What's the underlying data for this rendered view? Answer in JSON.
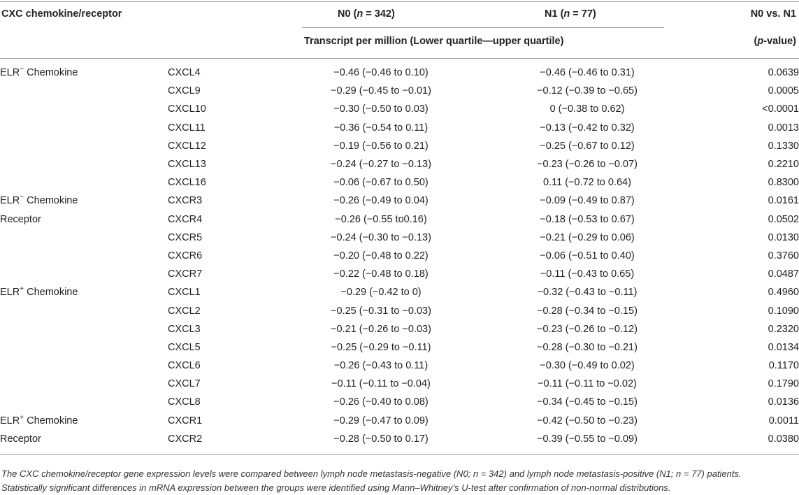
{
  "header": {
    "col1": "CXC chemokine/receptor",
    "n0_label": "N0 (",
    "n0_n": "n",
    "n0_val": " = 342)",
    "n1_label": "N1 (",
    "n1_n": "n",
    "n1_val": " = 77)",
    "pcol": "N0 vs. N1",
    "subheader": "Transcript per million (Lower quartile—upper quartile)",
    "pvalue_open": "(",
    "pvalue_p": "p",
    "pvalue_rest": "-value)"
  },
  "rows": [
    {
      "group_base": "ELR",
      "group_sup": "−",
      "group_rest": " Chemokine",
      "code": "CXCL4",
      "n0": "−0.46 (−0.46 to 0.10)",
      "n1": "−0.46 (−0.46 to 0.31)",
      "p": "0.0639"
    },
    {
      "group_base": "",
      "group_sup": "",
      "group_rest": "",
      "code": "CXCL9",
      "n0": "−0.29 (−0.45 to −0.01)",
      "n1": "−0.12 (−0.39 to −0.65)",
      "p": "0.0005"
    },
    {
      "group_base": "",
      "group_sup": "",
      "group_rest": "",
      "code": "CXCL10",
      "n0": "−0.30 (−0.50 to 0.03)",
      "n1": "0 (−0.38 to 0.62)",
      "p": "<0.0001"
    },
    {
      "group_base": "",
      "group_sup": "",
      "group_rest": "",
      "code": "CXCL11",
      "n0": "−0.36 (−0.54 to 0.11)",
      "n1": "−0.13 (−0.42 to 0.32)",
      "p": "0.0013"
    },
    {
      "group_base": "",
      "group_sup": "",
      "group_rest": "",
      "code": "CXCL12",
      "n0": "−0.19 (−0.56 to 0.21)",
      "n1": "−0.25 (−0.67 to 0.12)",
      "p": "0.1330"
    },
    {
      "group_base": "",
      "group_sup": "",
      "group_rest": "",
      "code": "CXCL13",
      "n0": "−0.24 (−0.27 to −0.13)",
      "n1": "−0.23 (−0.26 to −0.07)",
      "p": "0.2210"
    },
    {
      "group_base": "",
      "group_sup": "",
      "group_rest": "",
      "code": "CXCL16",
      "n0": "−0.06 (−0.67 to 0.50)",
      "n1": "0.11 (−0.72 to 0.64)",
      "p": "0.8300"
    },
    {
      "group_base": "ELR",
      "group_sup": "−",
      "group_rest": " Chemokine",
      "code": "CXCR3",
      "n0": "−0.26 (−0.49 to 0.04)",
      "n1": "−0.09 (−0.49 to 0.87)",
      "p": "0.0161"
    },
    {
      "group_base": "Receptor",
      "group_sup": "",
      "group_rest": "",
      "code": "CXCR4",
      "n0": "−0.26 (−0.55 to0.16)",
      "n1": "−0.18 (−0.53 to 0.67)",
      "p": "0.0502"
    },
    {
      "group_base": "",
      "group_sup": "",
      "group_rest": "",
      "code": "CXCR5",
      "n0": "−0.24 (−0.30 to −0.13)",
      "n1": "−0.21 (−0.29 to 0.06)",
      "p": "0.0130"
    },
    {
      "group_base": "",
      "group_sup": "",
      "group_rest": "",
      "code": "CXCR6",
      "n0": "−0.20 (−0.48 to 0.22)",
      "n1": "−0.06 (−0.51 to 0.40)",
      "p": "0.3760"
    },
    {
      "group_base": "",
      "group_sup": "",
      "group_rest": "",
      "code": "CXCR7",
      "n0": "−0.22 (−0.48 to 0.18)",
      "n1": "−0.11 (−0.43 to 0.65)",
      "p": "0.0487"
    },
    {
      "group_base": "ELR",
      "group_sup": "+",
      "group_rest": " Chemokine",
      "code": "CXCL1",
      "n0": "−0.29 (−0.42 to 0)",
      "n1": "−0.32 (−0.43 to −0.11)",
      "p": "0.4960"
    },
    {
      "group_base": "",
      "group_sup": "",
      "group_rest": "",
      "code": "CXCL2",
      "n0": "−0.25 (−0.31 to −0.03)",
      "n1": "−0.28 (−0.34 to −0.15)",
      "p": "0.1090"
    },
    {
      "group_base": "",
      "group_sup": "",
      "group_rest": "",
      "code": "CXCL3",
      "n0": "−0.21 (−0.26 to −0.03)",
      "n1": "−0.23 (−0.26 to −0.12)",
      "p": "0.2320"
    },
    {
      "group_base": "",
      "group_sup": "",
      "group_rest": "",
      "code": "CXCL5",
      "n0": "−0.25 (−0.29 to −0.11)",
      "n1": "−0.28 (−0.30 to −0.21)",
      "p": "0.0134"
    },
    {
      "group_base": "",
      "group_sup": "",
      "group_rest": "",
      "code": "CXCL6",
      "n0": "−0.26 (−0.43 to 0.11)",
      "n1": "−0.30 (−0.49 to 0.02)",
      "p": "0.1170"
    },
    {
      "group_base": "",
      "group_sup": "",
      "group_rest": "",
      "code": "CXCL7",
      "n0": "−0.11 (−0.11 to −0.04)",
      "n1": "−0.11 (−0.11 to −0.02)",
      "p": "0.1790"
    },
    {
      "group_base": "",
      "group_sup": "",
      "group_rest": "",
      "code": "CXCL8",
      "n0": "−0.26 (−0.40 to 0.08)",
      "n1": "−0.34 (−0.45 to −0.15)",
      "p": "0.0136"
    },
    {
      "group_base": "ELR",
      "group_sup": "+",
      "group_rest": " Chemokine",
      "code": "CXCR1",
      "n0": "−0.29 (−0.47 to 0.09)",
      "n1": "−0.42 (−0.50 to −0.23)",
      "p": "0.0011"
    },
    {
      "group_base": "Receptor",
      "group_sup": "",
      "group_rest": "",
      "code": "CXCR2",
      "n0": "−0.28 (−0.50 to 0.17)",
      "n1": "−0.39 (−0.55 to −0.09)",
      "p": "0.0380"
    }
  ],
  "footnote": {
    "line1_a": "The CXC chemokine/receptor gene expression levels were compared between lymph node metastasis-negative (N0; ",
    "line1_b": "n",
    "line1_c": " = 342) and lymph node metastasis-positive (N1; ",
    "line1_d": "n",
    "line1_e": " = 77) patients.",
    "line2": "Statistically significant differences in mRNA expression between the groups were identified using Mann–Whitney’s U-test after confirmation of non-normal distributions."
  }
}
